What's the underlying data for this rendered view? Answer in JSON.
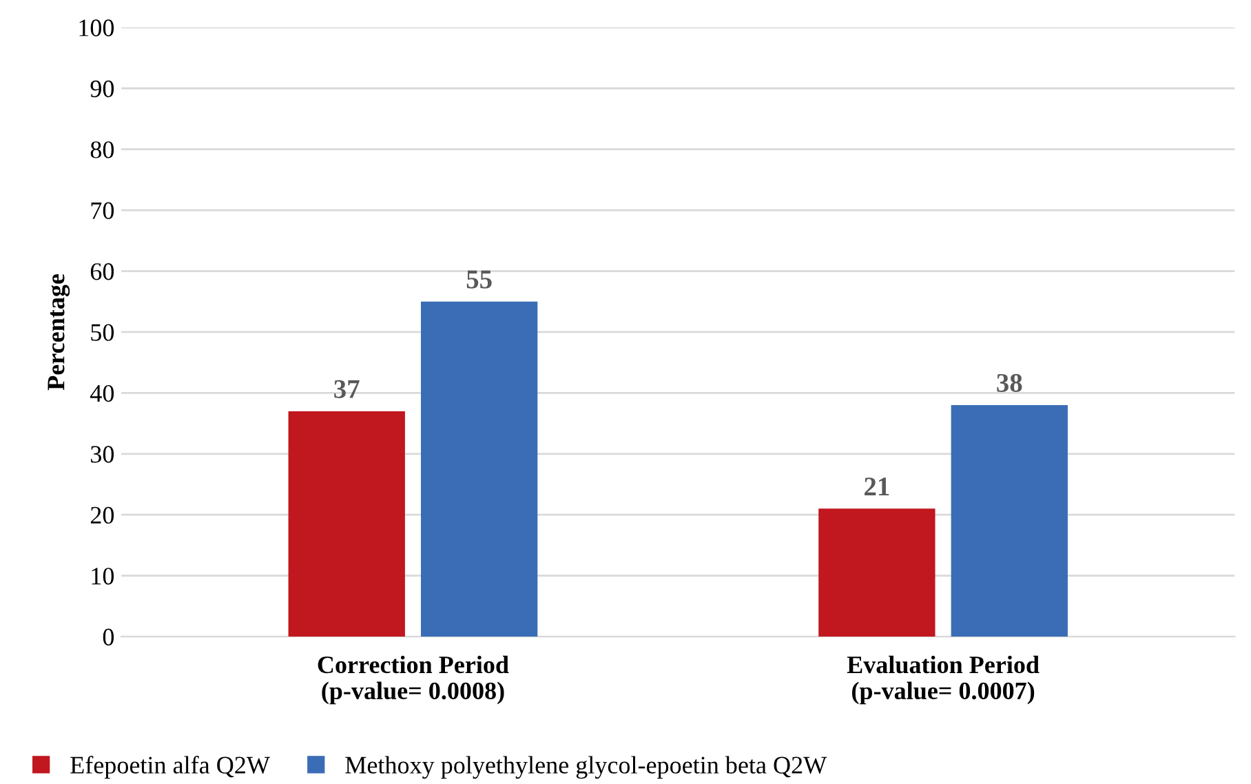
{
  "chart_data": {
    "type": "bar",
    "ylabel": "Percentage",
    "categories": [
      "Correction Period\n(p-value= 0.0008)",
      "Evaluation Period\n(p-value= 0.0007)"
    ],
    "series": [
      {
        "name": "Efepoetin alfa Q2W",
        "color": "#c1171f",
        "values": [
          37,
          21
        ]
      },
      {
        "name": "Methoxy polyethylene glycol-epoetin beta Q2W",
        "color": "#3a6db5",
        "values": [
          55,
          38
        ]
      }
    ],
    "ylim": [
      0,
      100
    ],
    "yticks": [
      0,
      10,
      20,
      30,
      40,
      50,
      60,
      70,
      80,
      90,
      100
    ],
    "grid": "y",
    "legend": "bottom left",
    "data_labels": true
  }
}
